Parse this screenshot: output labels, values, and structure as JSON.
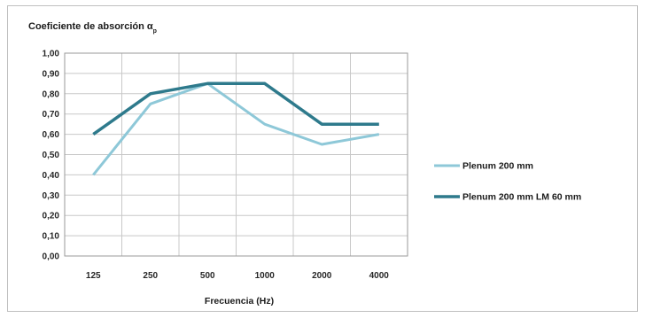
{
  "chart_data": {
    "type": "line",
    "title": "Coeficiente de absorción α",
    "title_subscript": "p",
    "xlabel": "Frecuencia (Hz)",
    "ylabel": "",
    "categories": [
      "125",
      "250",
      "500",
      "1000",
      "2000",
      "4000"
    ],
    "ylim": [
      0,
      1
    ],
    "yticks": [
      "0,00",
      "0,10",
      "0,20",
      "0,30",
      "0,40",
      "0,50",
      "0,60",
      "0,70",
      "0,80",
      "0,90",
      "1,00"
    ],
    "grid": true,
    "legend_position": "right",
    "series": [
      {
        "name": "Plenum 200 mm",
        "values": [
          0.4,
          0.75,
          0.85,
          0.65,
          0.55,
          0.6
        ],
        "color": "#8ec8d8"
      },
      {
        "name": "Plenum 200 mm LM 60 mm",
        "values": [
          0.6,
          0.8,
          0.85,
          0.85,
          0.65,
          0.65
        ],
        "color": "#2e7a8c"
      }
    ]
  }
}
